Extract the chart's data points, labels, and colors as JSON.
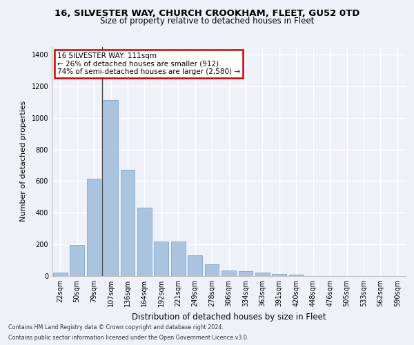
{
  "title_line1": "16, SILVESTER WAY, CHURCH CROOKHAM, FLEET, GU52 0TD",
  "title_line2": "Size of property relative to detached houses in Fleet",
  "xlabel": "Distribution of detached houses by size in Fleet",
  "ylabel": "Number of detached properties",
  "categories": [
    "22sqm",
    "50sqm",
    "79sqm",
    "107sqm",
    "136sqm",
    "164sqm",
    "192sqm",
    "221sqm",
    "249sqm",
    "278sqm",
    "306sqm",
    "334sqm",
    "363sqm",
    "391sqm",
    "420sqm",
    "448sqm",
    "476sqm",
    "505sqm",
    "533sqm",
    "562sqm",
    "590sqm"
  ],
  "values": [
    20,
    195,
    615,
    1110,
    670,
    430,
    220,
    220,
    130,
    73,
    35,
    30,
    20,
    15,
    8,
    0,
    0,
    0,
    0,
    0,
    0
  ],
  "bar_color": "#aac4e0",
  "bar_edgecolor": "#7aaad0",
  "annotation_text": "16 SILVESTER WAY: 111sqm\n← 26% of detached houses are smaller (912)\n74% of semi-detached houses are larger (2,580) →",
  "vline_x": 3.0,
  "ylim": [
    0,
    1450
  ],
  "yticks": [
    0,
    200,
    400,
    600,
    800,
    1000,
    1200,
    1400
  ],
  "footer_line1": "Contains HM Land Registry data © Crown copyright and database right 2024.",
  "footer_line2": "Contains public sector information licensed under the Open Government Licence v3.0.",
  "bg_color": "#eef2f8",
  "grid_color": "#ffffff",
  "annotation_box_color": "#ffffff",
  "annotation_box_edgecolor": "#cc0000",
  "vline_color": "#444444",
  "title1_fontsize": 9.5,
  "title2_fontsize": 8.5,
  "ylabel_fontsize": 8,
  "xlabel_fontsize": 8.5,
  "tick_fontsize": 7,
  "footer_fontsize": 5.8,
  "annotation_fontsize": 7.5
}
